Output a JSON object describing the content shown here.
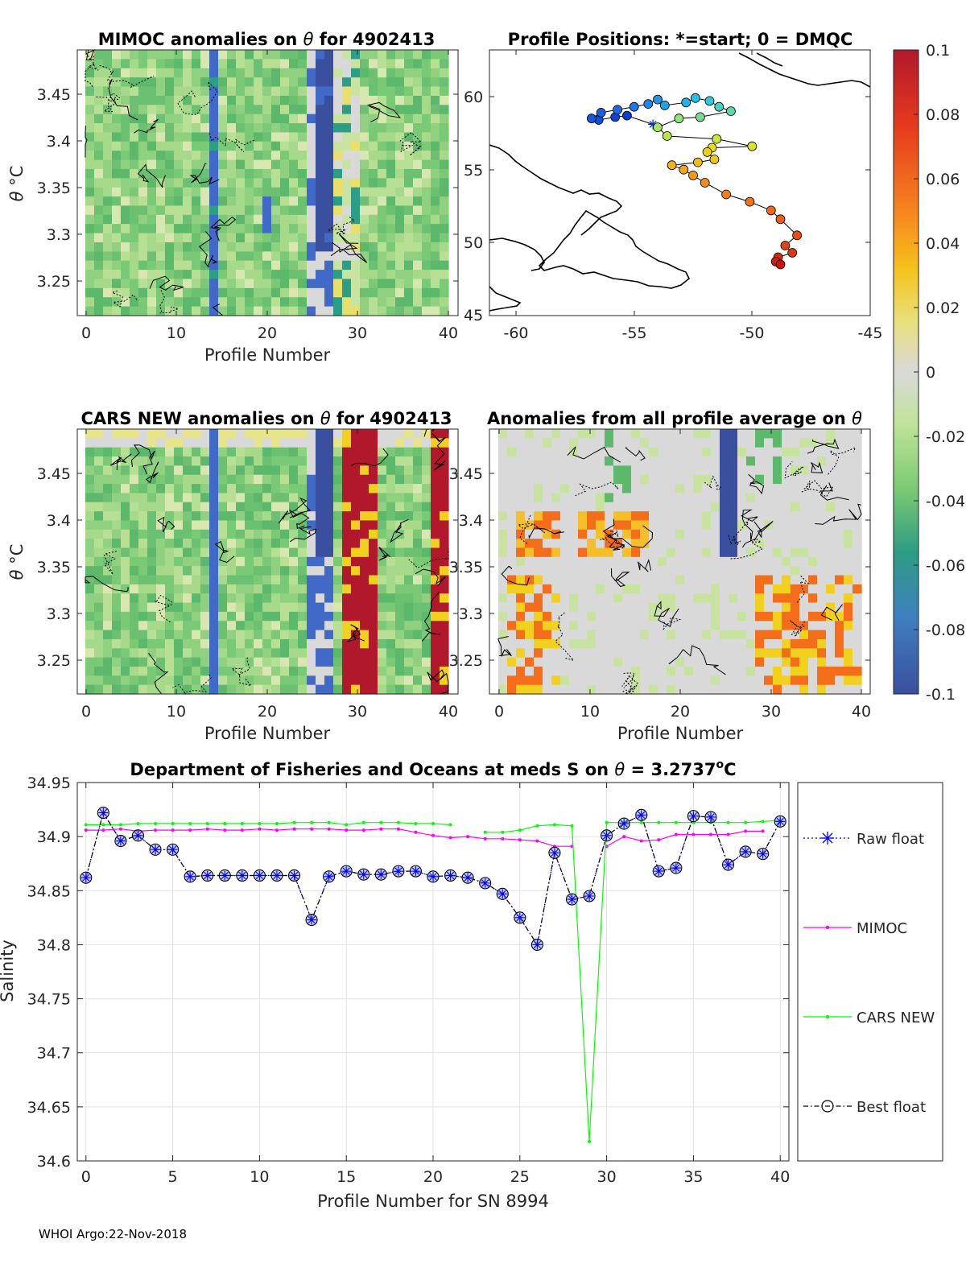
{
  "footer": "WHOI Argo:22-Nov-2018",
  "panels": {
    "mimoc": {
      "title_a": "MIMOC anomalies on ",
      "theta": "θ",
      "title_b": "  for 4902413",
      "xlabel": "Profile Number",
      "ylabel_theta": "θ",
      "ylabel_unit": " °C",
      "yticks": [
        "3.45",
        "3.4",
        "3.35",
        "3.3",
        "3.25"
      ],
      "xticks": [
        "0",
        "10",
        "20",
        "30",
        "40"
      ]
    },
    "map": {
      "title": "Profile Positions: *=start; 0 = DMQC",
      "yticks": [
        "60",
        "55",
        "50",
        "45"
      ],
      "xticks": [
        "-60",
        "-55",
        "-50",
        "-45"
      ]
    },
    "cars": {
      "title_a": "CARS NEW anomalies on ",
      "theta": "θ",
      "title_b": " for 4902413",
      "xlabel": "Profile Number",
      "ylabel_theta": "θ",
      "ylabel_unit": " °C",
      "yticks": [
        "3.45",
        "3.4",
        "3.35",
        "3.3",
        "3.25"
      ],
      "xticks": [
        "0",
        "10",
        "20",
        "30",
        "40"
      ]
    },
    "avg": {
      "title_a": "Anomalies from all profile average on ",
      "theta": "θ",
      "xlabel": "Profile Number",
      "yticks": [
        "3.45",
        "3.4",
        "3.35",
        "3.3",
        "3.25"
      ],
      "xticks": [
        "0",
        "10",
        "20",
        "30",
        "40"
      ]
    }
  },
  "colorbar": {
    "ticks": [
      "0.1",
      "0.08",
      "0.06",
      "0.04",
      "0.02",
      "0",
      "-0.02",
      "-0.04",
      "-0.06",
      "-0.08",
      "-0.1"
    ],
    "colors": {
      "high": "#b2182b",
      "orange": "#f46d1a",
      "yellow": "#f2d11e",
      "neutral": "#d9d9d9",
      "lightgreen": "#b5de8a",
      "green": "#5cb86b",
      "teal": "#2c9e88",
      "blue": "#4169c8",
      "low": "#3a4f9e"
    }
  },
  "chart_data": {
    "type": "line",
    "title_a": "Department of Fisheries and Oceans at meds S on ",
    "title_theta": "θ",
    "title_b": " = 3.2737",
    "title_sup": "o",
    "title_c": "C",
    "xlabel": "Profile Number for SN 8994",
    "ylabel": "Salinity",
    "xlim": [
      -0.5,
      40.5
    ],
    "ylim": [
      34.6,
      34.95
    ],
    "xticks": [
      "0",
      "5",
      "10",
      "15",
      "20",
      "25",
      "30",
      "35",
      "40"
    ],
    "yticks": [
      "34.95",
      "34.9",
      "34.85",
      "34.8",
      "34.75",
      "34.7",
      "34.65",
      "34.6"
    ],
    "x": [
      0,
      1,
      2,
      3,
      4,
      5,
      6,
      7,
      8,
      9,
      10,
      11,
      12,
      13,
      14,
      15,
      16,
      17,
      18,
      19,
      20,
      21,
      22,
      23,
      24,
      25,
      26,
      27,
      28,
      29,
      30,
      31,
      32,
      33,
      34,
      35,
      36,
      37,
      38,
      39,
      40
    ],
    "series": [
      {
        "name": "Raw float",
        "color": "#0000ff",
        "values": [
          34.862,
          34.922,
          34.896,
          34.901,
          34.888,
          34.888,
          34.863,
          34.864,
          34.864,
          34.864,
          34.864,
          34.864,
          34.864,
          34.823,
          34.863,
          34.868,
          34.865,
          34.865,
          34.868,
          34.868,
          34.863,
          34.864,
          34.862,
          34.857,
          34.847,
          34.825,
          34.8,
          34.885,
          34.842,
          34.845,
          34.901,
          34.912,
          34.92,
          34.868,
          34.871,
          34.919,
          34.918,
          34.874,
          34.886,
          34.884,
          34.914
        ]
      },
      {
        "name": "MIMOC",
        "color": "#ff00ff",
        "values": [
          34.906,
          34.906,
          34.907,
          34.905,
          34.906,
          34.906,
          34.906,
          34.907,
          34.906,
          34.906,
          34.907,
          34.906,
          34.907,
          34.907,
          34.907,
          34.906,
          34.906,
          34.907,
          34.907,
          34.904,
          34.901,
          34.899,
          34.9,
          34.898,
          34.898,
          34.897,
          34.896,
          34.891,
          34.891,
          null,
          34.891,
          34.9,
          34.896,
          34.897,
          34.902,
          34.902,
          34.902,
          34.902,
          34.905,
          34.905,
          null
        ]
      },
      {
        "name": "CARS NEW",
        "color": "#00ff00",
        "values": [
          34.911,
          34.911,
          34.911,
          34.912,
          34.912,
          34.912,
          34.912,
          34.912,
          34.912,
          34.912,
          34.912,
          34.912,
          34.913,
          34.913,
          34.913,
          34.911,
          34.913,
          34.913,
          34.913,
          34.912,
          34.912,
          34.911,
          null,
          34.904,
          34.904,
          34.906,
          34.91,
          34.911,
          34.91,
          34.618,
          34.913,
          34.913,
          34.913,
          34.913,
          34.913,
          34.913,
          34.913,
          34.913,
          34.913,
          34.914,
          34.915
        ]
      },
      {
        "name": "Best float",
        "color": "#000000",
        "values": [
          34.862,
          34.922,
          34.896,
          34.901,
          34.888,
          34.888,
          34.863,
          34.864,
          34.864,
          34.864,
          34.864,
          34.864,
          34.864,
          34.823,
          34.863,
          34.868,
          34.865,
          34.865,
          34.868,
          34.868,
          34.863,
          34.864,
          34.862,
          34.857,
          34.847,
          34.825,
          34.8,
          34.885,
          34.842,
          34.845,
          34.901,
          34.912,
          34.92,
          34.868,
          34.871,
          34.919,
          34.918,
          34.874,
          34.886,
          34.884,
          34.914
        ]
      }
    ],
    "legend": [
      "Raw float",
      "MIMOC",
      "CARS NEW",
      "Best float"
    ],
    "legend_position": "right",
    "grid": true
  }
}
